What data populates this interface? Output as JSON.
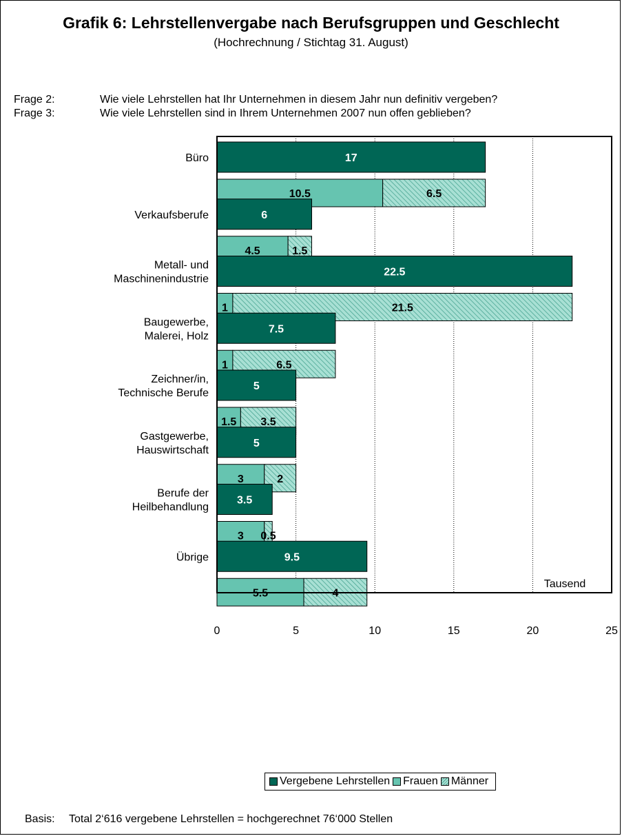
{
  "page": {
    "title": "Grafik 6: Lehrstellenvergabe nach Berufsgruppen und Geschlecht",
    "subtitle": "(Hochrechnung / Stichtag 31. August)",
    "questions": [
      {
        "label": "Frage 2:",
        "text": "Wie viele Lehrstellen hat Ihr Unternehmen in diesem Jahr nun definitiv vergeben?"
      },
      {
        "label": "Frage 3:",
        "text": "Wie viele Lehrstellen sind in Ihrem Unternehmen 2007 nun offen geblieben?"
      }
    ],
    "basis": {
      "label": "Basis:",
      "text": "Total 2‘616  vergebene Lehrstellen = hochgerechnet 76‘000 Stellen"
    }
  },
  "chart_data": {
    "type": "bar",
    "orientation": "horizontal",
    "unit_label": "Tausend",
    "xlim": [
      0,
      25
    ],
    "x_ticks": [
      "0",
      "5",
      "10",
      "15",
      "20",
      "25"
    ],
    "grid": "vertical dotted",
    "legend_position": "bottom",
    "categories": [
      {
        "label": [
          "Büro"
        ],
        "vergeben": 17,
        "frauen": 10.5,
        "maenner": 6.5,
        "labels": {
          "vergeben": "17",
          "frauen": "10.5",
          "maenner": "6.5"
        }
      },
      {
        "label": [
          "Verkaufsberufe"
        ],
        "vergeben": 6,
        "frauen": 4.5,
        "maenner": 1.5,
        "labels": {
          "vergeben": "6",
          "frauen": "4.5",
          "maenner": "1.5"
        }
      },
      {
        "label": [
          "Metall- und",
          "Maschinenindustrie"
        ],
        "vergeben": 22.5,
        "frauen": 1,
        "maenner": 21.5,
        "labels": {
          "vergeben": "22.5",
          "frauen": "1",
          "maenner": "21.5"
        }
      },
      {
        "label": [
          "Baugewerbe,",
          "Malerei, Holz"
        ],
        "vergeben": 7.5,
        "frauen": 1,
        "maenner": 6.5,
        "labels": {
          "vergeben": "7.5",
          "frauen": "1",
          "maenner": "6.5"
        }
      },
      {
        "label": [
          "Zeichner/in,",
          "Technische Berufe"
        ],
        "vergeben": 5,
        "frauen": 1.5,
        "maenner": 3.5,
        "labels": {
          "vergeben": "5",
          "frauen": "1.5",
          "maenner": "3.5"
        }
      },
      {
        "label": [
          "Gastgewerbe,",
          "Hauswirtschaft"
        ],
        "vergeben": 5,
        "frauen": 3,
        "maenner": 2,
        "labels": {
          "vergeben": "5",
          "frauen": "3",
          "maenner": "2"
        }
      },
      {
        "label": [
          "Berufe der",
          "Heilbehandlung"
        ],
        "vergeben": 3.5,
        "frauen": 3,
        "maenner": 0.5,
        "labels": {
          "vergeben": "3.5",
          "frauen": "3",
          "maenner": "0.5"
        }
      },
      {
        "label": [
          "Übrige"
        ],
        "vergeben": 9.5,
        "frauen": 5.5,
        "maenner": 4,
        "labels": {
          "vergeben": "9.5",
          "frauen": "5.5",
          "maenner": "4"
        }
      }
    ],
    "series": [
      {
        "key": "vergeben",
        "name": "Vergebene Lehrstellen",
        "color": "#006655"
      },
      {
        "key": "frauen",
        "name": "Frauen",
        "color": "#66c4b0"
      },
      {
        "key": "maenner",
        "name": "Männer",
        "color": "#a8e0d4",
        "pattern": "hatched"
      }
    ]
  }
}
